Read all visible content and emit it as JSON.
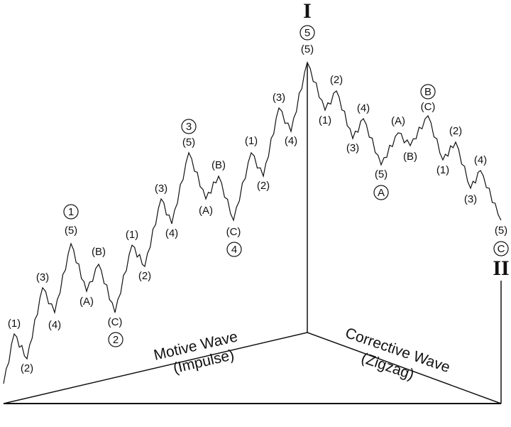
{
  "wave_labels": {
    "top": "I",
    "bottom": "II"
  },
  "labels": [
    "(5)",
    "(1)",
    "(2)",
    "(3)",
    "(4)",
    "(5)",
    "(B)",
    "(A)",
    "(C)",
    "(1)",
    "(2)",
    "(3)",
    "(4)",
    "(5)",
    "(B)",
    "(A)",
    "(C)",
    "(1)",
    "(2)",
    "(3)",
    "(4)",
    "(2)",
    "(1)",
    "(4)",
    "(3)",
    "(5)",
    "(A)",
    "(B)",
    "(C)",
    "(2)",
    "(1)",
    "(4)",
    "(3)",
    "(5)"
  ],
  "circled_labels": [
    "5",
    "1",
    "2",
    "3",
    "4",
    "A",
    "B",
    "C"
  ],
  "motive_wave": {
    "title": "Motive Wave",
    "subtitle": "(Impulse)"
  },
  "corrective_wave": {
    "title": "Corrective Wave",
    "subtitle": "(Zigzag)"
  }
}
